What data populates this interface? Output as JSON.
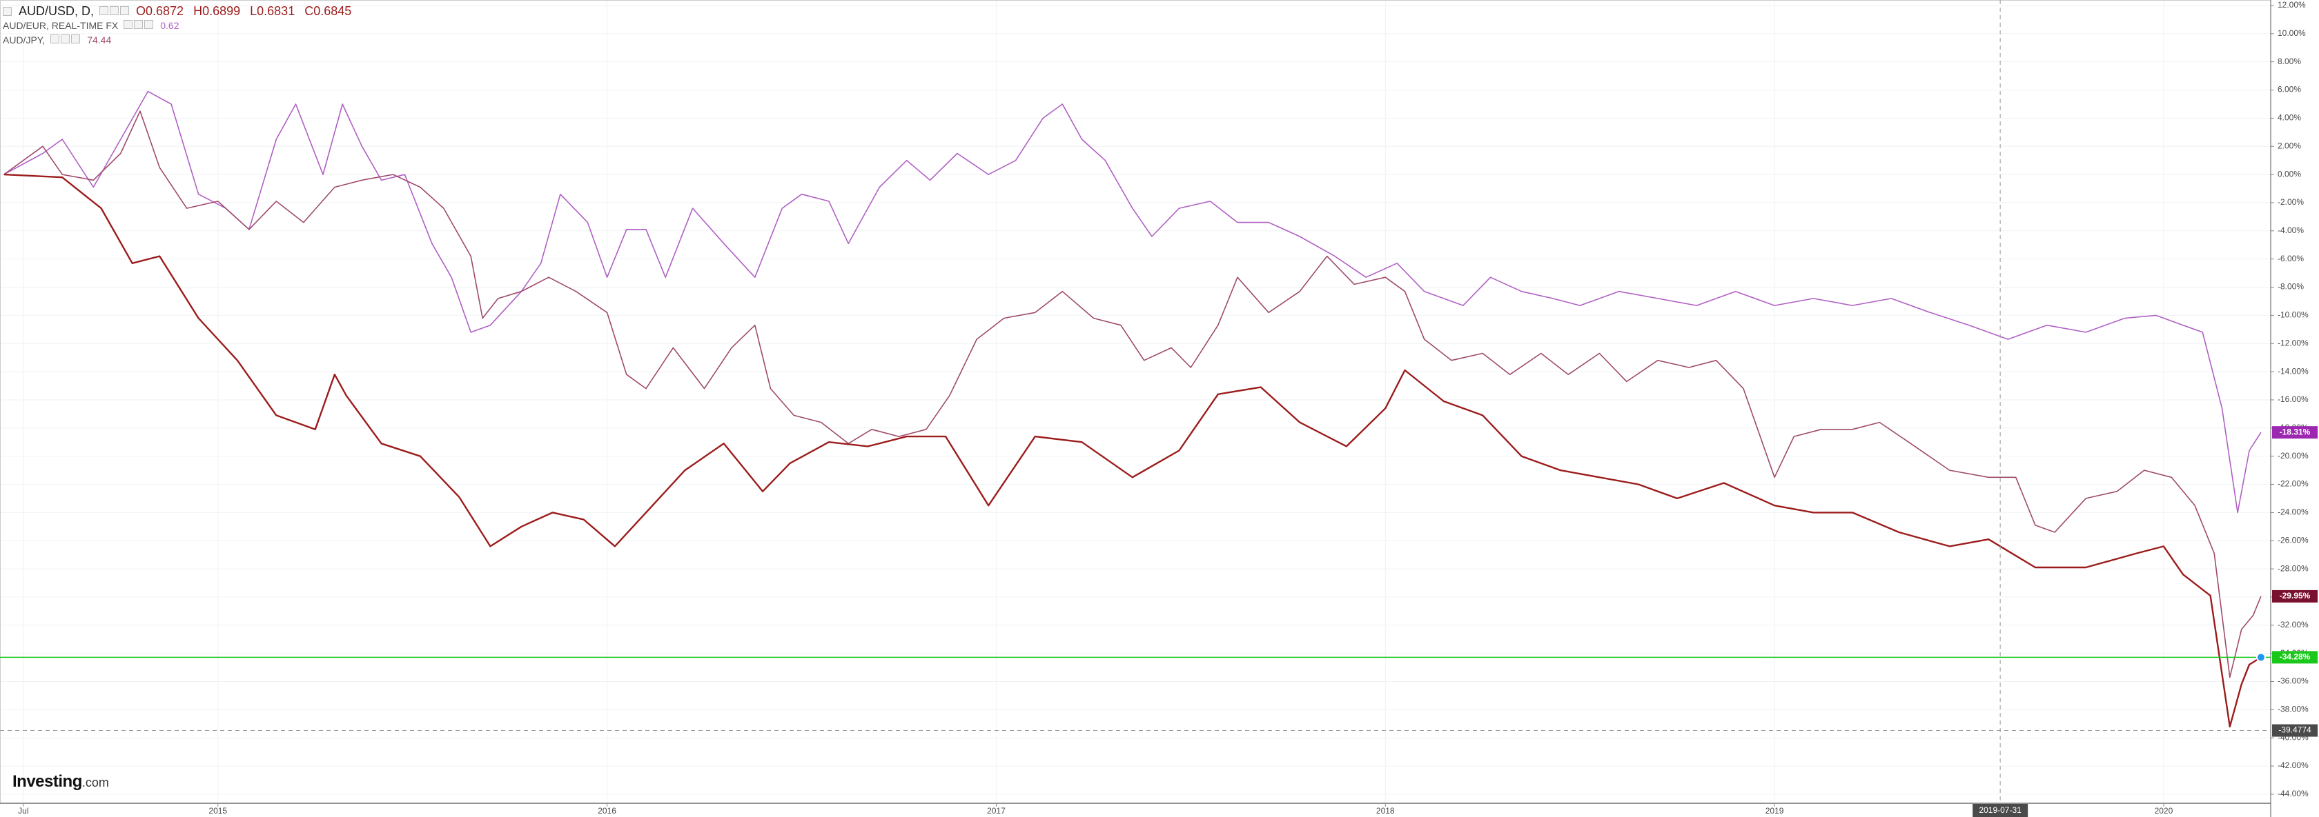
{
  "chart_data": {
    "type": "line",
    "legend": [
      {
        "series": 0,
        "texts": [
          "O0.6872",
          "H0.6899",
          "L0.6831",
          "C0.6845"
        ]
      },
      {
        "series": 1,
        "texts": [
          "0.62"
        ]
      },
      {
        "series": 2,
        "texts": [
          "74.44"
        ]
      }
    ],
    "watermark": {
      "brand": "Investing",
      "suffix": ".com"
    },
    "xlim": [
      2014.44,
      2020.275
    ],
    "xticks": [
      {
        "value": 2014.5,
        "label": "Jul"
      },
      {
        "value": 2015,
        "label": "2015"
      },
      {
        "value": 2016,
        "label": "2016"
      },
      {
        "value": 2017,
        "label": "2017"
      },
      {
        "value": 2018,
        "label": "2018"
      },
      {
        "value": 2019,
        "label": "2019"
      },
      {
        "value": 2020,
        "label": "2020"
      }
    ],
    "ylim": [
      -44.64,
      12.39
    ],
    "yticks": [
      {
        "value": 12,
        "label": "12.00%"
      },
      {
        "value": 10,
        "label": "10.00%"
      },
      {
        "value": 8,
        "label": "8.00%"
      },
      {
        "value": 6,
        "label": "6.00%"
      },
      {
        "value": 4,
        "label": "4.00%"
      },
      {
        "value": 2,
        "label": "2.00%"
      },
      {
        "value": 0,
        "label": "0.00%"
      },
      {
        "value": -2,
        "label": "-2.00%"
      },
      {
        "value": -4,
        "label": "-4.00%"
      },
      {
        "value": -6,
        "label": "-6.00%"
      },
      {
        "value": -8,
        "label": "-8.00%"
      },
      {
        "value": -10,
        "label": "-10.00%"
      },
      {
        "value": -12,
        "label": "-12.00%"
      },
      {
        "value": -14,
        "label": "-14.00%"
      },
      {
        "value": -16,
        "label": "-16.00%"
      },
      {
        "value": -18,
        "label": "-18.00%"
      },
      {
        "value": -20,
        "label": "-20.00%"
      },
      {
        "value": -22,
        "label": "-22.00%"
      },
      {
        "value": -24,
        "label": "-24.00%"
      },
      {
        "value": -26,
        "label": "-26.00%"
      },
      {
        "value": -28,
        "label": "-28.00%"
      },
      {
        "value": -30,
        "label": "-30.00%"
      },
      {
        "value": -32,
        "label": "-32.00%"
      },
      {
        "value": -34,
        "label": "-34.00%"
      },
      {
        "value": -36,
        "label": "-36.00%"
      },
      {
        "value": -38,
        "label": "-38.00%"
      },
      {
        "value": -40,
        "label": "-40.00%"
      },
      {
        "value": -42,
        "label": "-42.00%"
      },
      {
        "value": -44,
        "label": "-44.00%"
      }
    ],
    "grid": true,
    "crosshair": {
      "x": {
        "value": 2019.58,
        "label": "2019-07-31"
      },
      "y": -39.4774
    },
    "series": [
      {
        "name": "AUD/USD, D,",
        "color": "#9c1c1c",
        "label_color": "#19c819",
        "price_line": true,
        "x": [
          2014.45,
          2014.6,
          2014.7,
          2014.78,
          2014.85,
          2014.95,
          2015.05,
          2015.15,
          2015.25,
          2015.3,
          2015.33,
          2015.42,
          2015.52,
          2015.62,
          2015.7,
          2015.78,
          2015.86,
          2015.94,
          2016.02,
          2016.1,
          2016.2,
          2016.3,
          2016.4,
          2016.47,
          2016.57,
          2016.67,
          2016.77,
          2016.87,
          2016.98,
          2017.1,
          2017.22,
          2017.35,
          2017.47,
          2017.57,
          2017.68,
          2017.78,
          2017.9,
          2018.0,
          2018.05,
          2018.15,
          2018.25,
          2018.35,
          2018.45,
          2018.55,
          2018.65,
          2018.75,
          2018.87,
          2019.0,
          2019.1,
          2019.2,
          2019.32,
          2019.45,
          2019.55,
          2019.67,
          2019.8,
          2019.93,
          2020.0,
          2020.05,
          2020.12,
          2020.17,
          2020.2,
          2020.22,
          2020.25
        ],
        "values": [
          0,
          -0.2,
          -2.4,
          -6.3,
          -5.8,
          -10.2,
          -13.2,
          -17.1,
          -18.1,
          -14.2,
          -15.7,
          -19.1,
          -20.0,
          -22.9,
          -26.4,
          -25.0,
          -24.0,
          -24.5,
          -26.4,
          -24.0,
          -21.0,
          -19.1,
          -22.5,
          -20.5,
          -19.0,
          -19.3,
          -18.6,
          -18.6,
          -23.5,
          -18.6,
          -19.0,
          -21.5,
          -19.6,
          -15.6,
          -15.1,
          -17.6,
          -19.3,
          -16.6,
          -13.9,
          -16.1,
          -17.1,
          -20.0,
          -21.0,
          -21.5,
          -22.0,
          -23.0,
          -21.9,
          -23.5,
          -24.0,
          -24.0,
          -25.4,
          -26.4,
          -25.9,
          -27.9,
          -27.9,
          -26.9,
          -26.4,
          -28.4,
          -29.9,
          -39.2,
          -36.2,
          -34.8,
          -34.28
        ],
        "end_label": {
          "value": -34.28,
          "label": "-34.28%"
        }
      },
      {
        "name": "AUD/EUR, REAL-TIME FX",
        "color": "#b060c4",
        "label_color": "#9c27b0",
        "x": [
          2014.45,
          2014.55,
          2014.6,
          2014.68,
          2014.75,
          2014.82,
          2014.88,
          2014.95,
          2015.02,
          2015.08,
          2015.15,
          2015.2,
          2015.27,
          2015.32,
          2015.37,
          2015.42,
          2015.48,
          2015.55,
          2015.6,
          2015.65,
          2015.7,
          2015.78,
          2015.83,
          2015.88,
          2015.95,
          2016.0,
          2016.05,
          2016.1,
          2016.15,
          2016.22,
          2016.3,
          2016.38,
          2016.45,
          2016.5,
          2016.57,
          2016.62,
          2016.7,
          2016.77,
          2016.83,
          2016.9,
          2016.98,
          2017.05,
          2017.12,
          2017.17,
          2017.22,
          2017.28,
          2017.35,
          2017.4,
          2017.47,
          2017.55,
          2017.62,
          2017.7,
          2017.78,
          2017.87,
          2017.95,
          2018.03,
          2018.1,
          2018.2,
          2018.27,
          2018.35,
          2018.43,
          2018.5,
          2018.6,
          2018.7,
          2018.8,
          2018.9,
          2019.0,
          2019.1,
          2019.2,
          2019.3,
          2019.4,
          2019.5,
          2019.6,
          2019.7,
          2019.8,
          2019.9,
          2019.98,
          2020.05,
          2020.1,
          2020.15,
          2020.19,
          2020.22,
          2020.25
        ],
        "values": [
          0,
          1.5,
          2.5,
          -0.9,
          2.5,
          5.9,
          5.0,
          -1.4,
          -2.4,
          -3.9,
          2.5,
          5.0,
          0,
          5.0,
          2.0,
          -0.4,
          0,
          -4.9,
          -7.3,
          -11.2,
          -10.7,
          -8.3,
          -6.3,
          -1.4,
          -3.4,
          -7.3,
          -3.9,
          -3.9,
          -7.3,
          -2.4,
          -4.9,
          -7.3,
          -2.4,
          -1.4,
          -1.9,
          -4.9,
          -0.9,
          1.0,
          -0.4,
          1.5,
          0,
          1.0,
          4.0,
          5.0,
          2.5,
          1.0,
          -2.4,
          -4.4,
          -2.4,
          -1.9,
          -3.4,
          -3.4,
          -4.4,
          -5.8,
          -7.3,
          -6.3,
          -8.3,
          -9.3,
          -7.3,
          -8.3,
          -8.8,
          -9.3,
          -8.3,
          -8.8,
          -9.3,
          -8.3,
          -9.3,
          -8.8,
          -9.3,
          -8.8,
          -9.8,
          -10.7,
          -11.7,
          -10.7,
          -11.2,
          -10.2,
          -10.0,
          -10.7,
          -11.2,
          -16.6,
          -24.0,
          -19.6,
          -18.31
        ],
        "end_label": {
          "value": -18.31,
          "label": "-18.31%"
        }
      },
      {
        "name": "AUD/JPY,",
        "color": "#9e4a6c",
        "label_color": "#7a1030",
        "x": [
          2014.45,
          2014.55,
          2014.6,
          2014.68,
          2014.75,
          2014.8,
          2014.85,
          2014.92,
          2015.0,
          2015.08,
          2015.15,
          2015.22,
          2015.3,
          2015.37,
          2015.45,
          2015.52,
          2015.58,
          2015.65,
          2015.68,
          2015.72,
          2015.78,
          2015.85,
          2015.92,
          2016.0,
          2016.05,
          2016.1,
          2016.17,
          2016.25,
          2016.32,
          2016.38,
          2016.42,
          2016.48,
          2016.55,
          2016.62,
          2016.68,
          2016.75,
          2016.82,
          2016.88,
          2016.95,
          2017.02,
          2017.1,
          2017.17,
          2017.25,
          2017.32,
          2017.38,
          2017.45,
          2017.5,
          2017.57,
          2017.62,
          2017.7,
          2017.78,
          2017.85,
          2017.92,
          2018.0,
          2018.05,
          2018.1,
          2018.17,
          2018.25,
          2018.32,
          2018.4,
          2018.47,
          2018.55,
          2018.62,
          2018.7,
          2018.78,
          2018.85,
          2018.92,
          2019.0,
          2019.05,
          2019.12,
          2019.2,
          2019.27,
          2019.35,
          2019.45,
          2019.55,
          2019.62,
          2019.67,
          2019.72,
          2019.8,
          2019.88,
          2019.95,
          2020.02,
          2020.08,
          2020.13,
          2020.17,
          2020.2,
          2020.23,
          2020.25
        ],
        "values": [
          0,
          2.0,
          0,
          -0.4,
          1.5,
          4.5,
          0.5,
          -2.4,
          -1.9,
          -3.9,
          -1.9,
          -3.4,
          -0.9,
          -0.4,
          0,
          -0.9,
          -2.4,
          -5.8,
          -10.2,
          -8.8,
          -8.3,
          -7.3,
          -8.3,
          -9.8,
          -14.2,
          -15.2,
          -12.3,
          -15.2,
          -12.3,
          -10.7,
          -15.2,
          -17.1,
          -17.6,
          -19.1,
          -18.1,
          -18.6,
          -18.1,
          -15.7,
          -11.7,
          -10.2,
          -9.8,
          -8.3,
          -10.2,
          -10.7,
          -13.2,
          -12.3,
          -13.7,
          -10.7,
          -7.3,
          -9.8,
          -8.3,
          -5.8,
          -7.8,
          -7.3,
          -8.3,
          -11.7,
          -13.2,
          -12.7,
          -14.2,
          -12.7,
          -14.2,
          -12.7,
          -14.7,
          -13.2,
          -13.7,
          -13.2,
          -15.2,
          -21.5,
          -18.6,
          -18.1,
          -18.1,
          -17.6,
          -19.1,
          -21.0,
          -21.5,
          -21.5,
          -24.9,
          -25.4,
          -23.0,
          -22.5,
          -21.0,
          -21.5,
          -23.5,
          -26.9,
          -35.7,
          -32.3,
          -31.3,
          -29.95
        ],
        "end_label": {
          "value": -29.95,
          "label": "-29.95%"
        }
      }
    ]
  }
}
